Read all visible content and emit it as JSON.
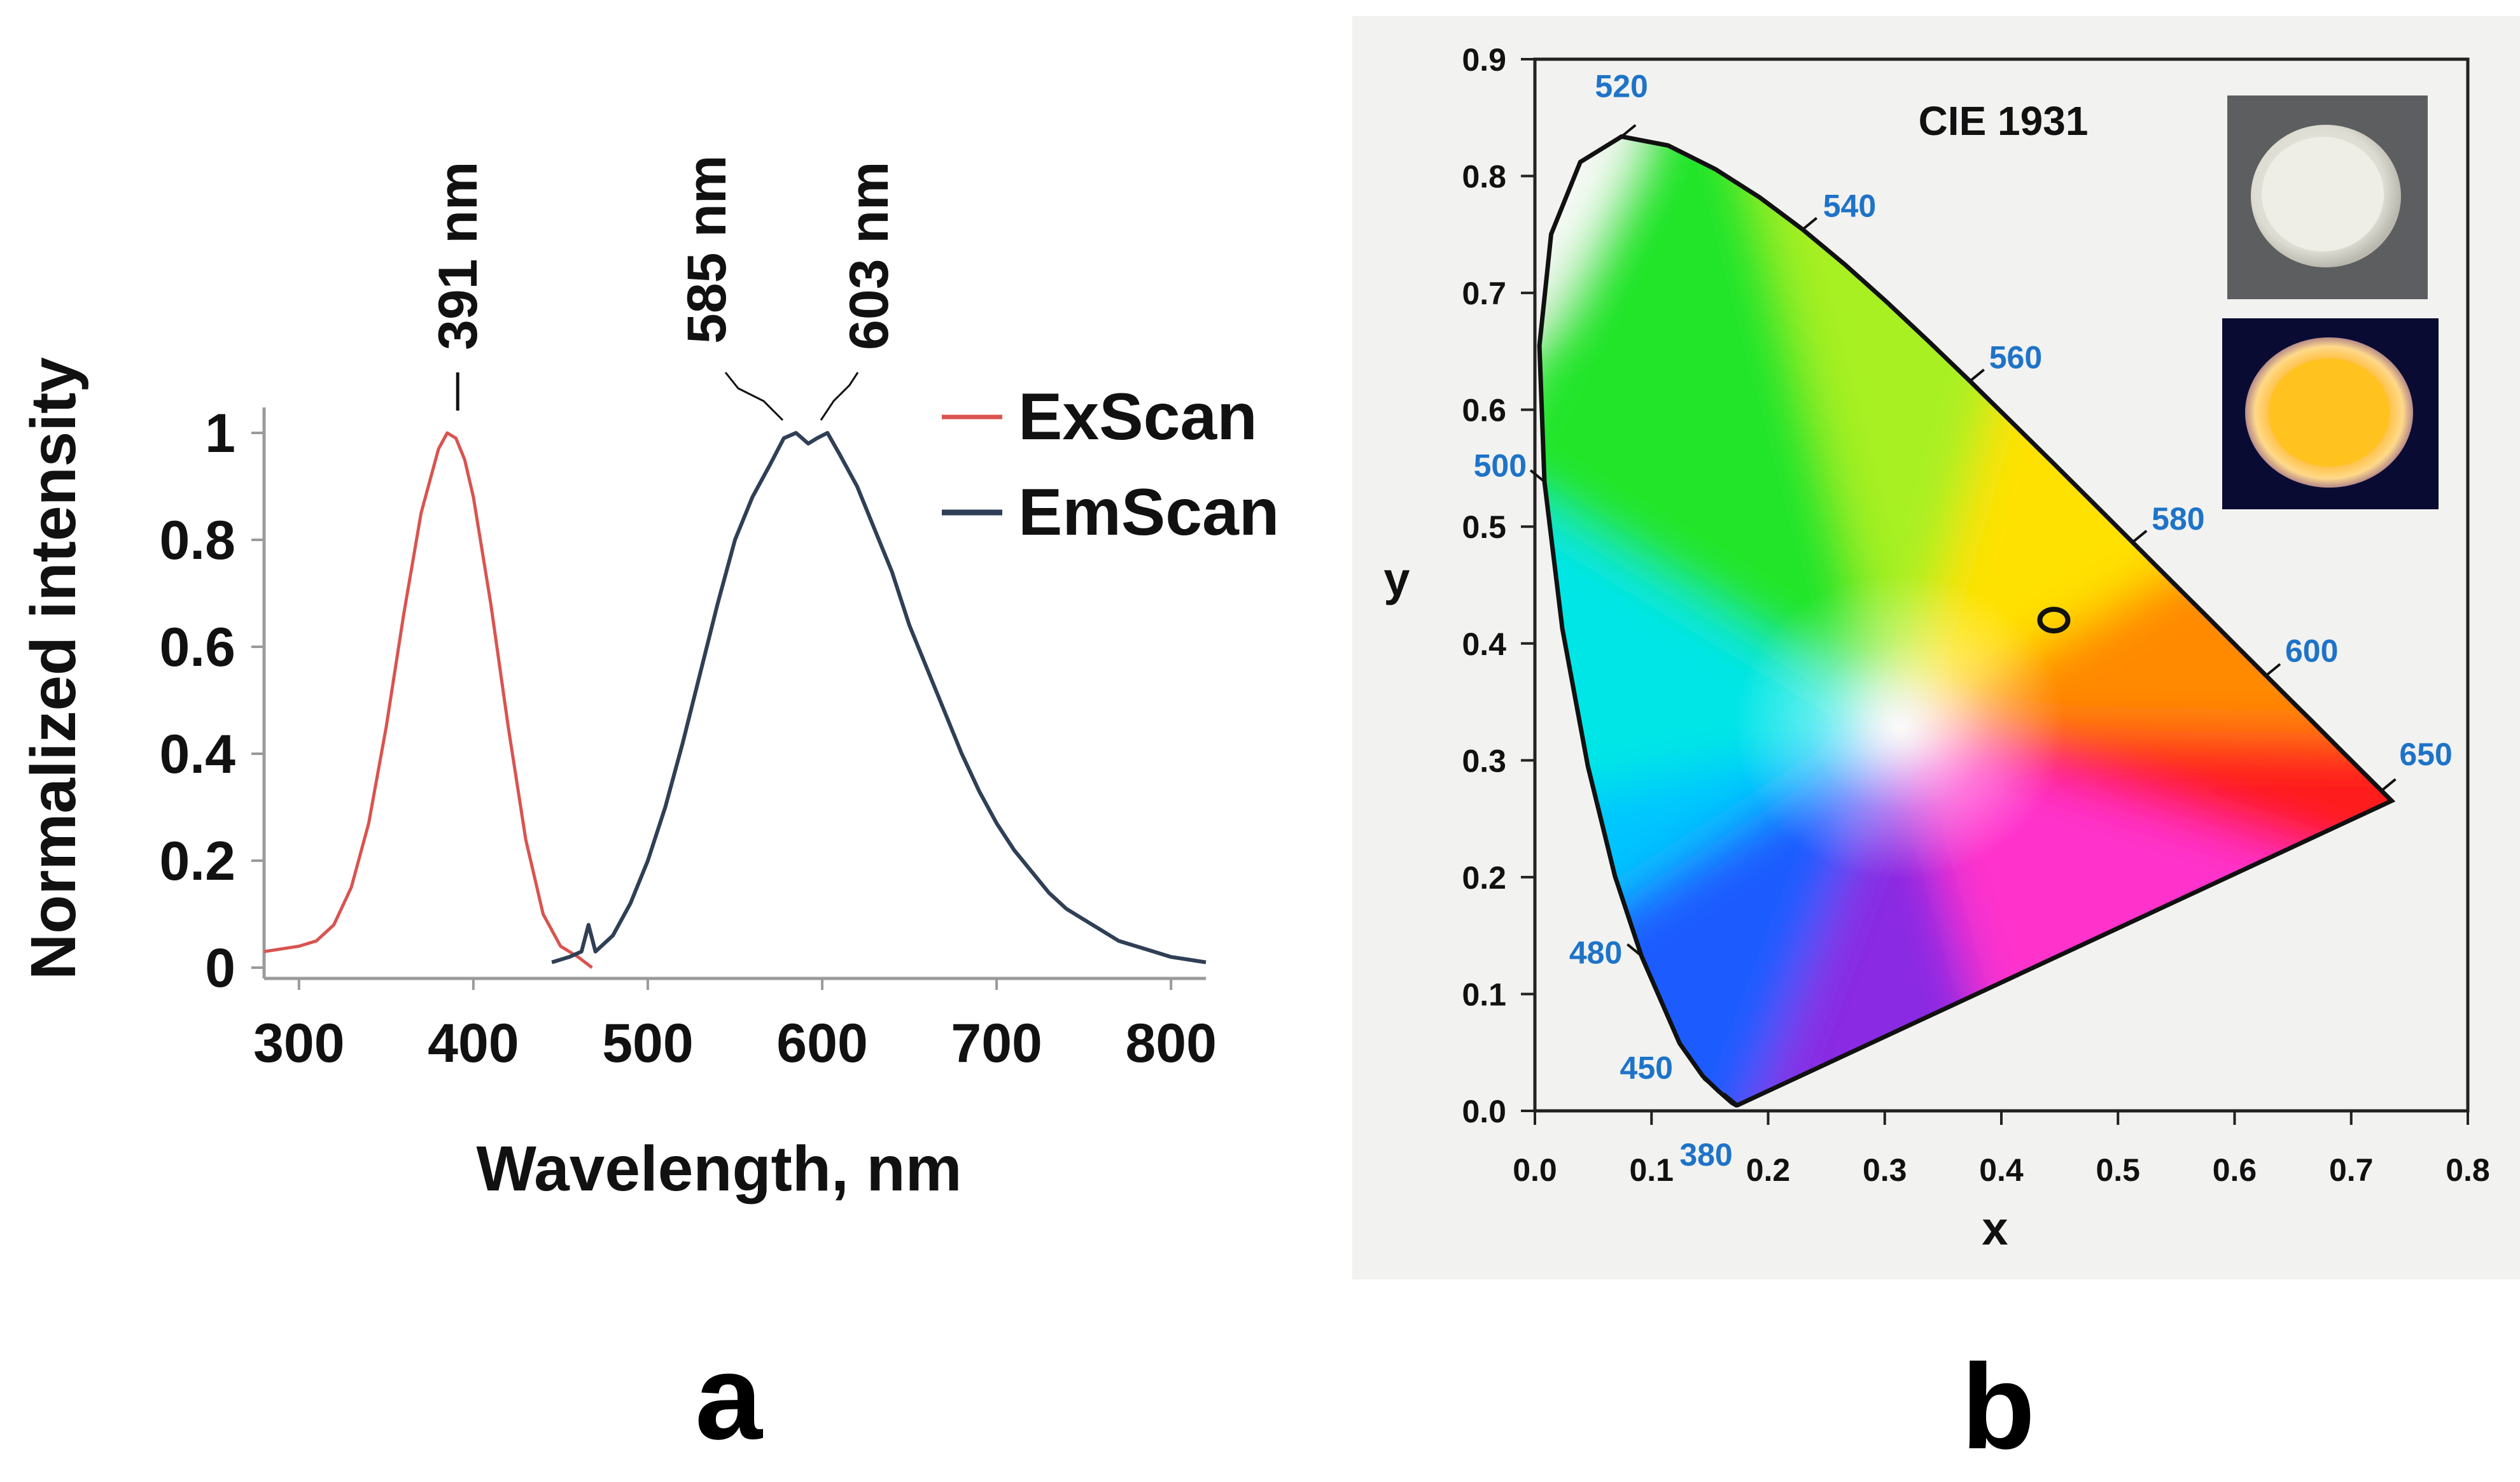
{
  "chart_data": [
    {
      "panel": "a",
      "type": "line",
      "xlabel": "Wavelength, nm",
      "ylabel": "Normalized intensity",
      "xlim": [
        280,
        820
      ],
      "ylim": [
        0,
        1
      ],
      "xticks": [
        300,
        400,
        500,
        600,
        700,
        800
      ],
      "yticks": [
        {
          "v": 0,
          "t": "0"
        },
        {
          "v": 0.2,
          "t": "0.2"
        },
        {
          "v": 0.4,
          "t": "0.4"
        },
        {
          "v": 0.6,
          "t": "0.6"
        },
        {
          "v": 0.8,
          "t": "0.8"
        },
        {
          "v": 1,
          "t": "1"
        }
      ],
      "legend_position": "top-right",
      "series": [
        {
          "name": "ExScan",
          "color": "#d9534f",
          "x": [
            280,
            300,
            310,
            320,
            330,
            340,
            350,
            360,
            370,
            380,
            385,
            390,
            395,
            400,
            410,
            420,
            430,
            440,
            450,
            460,
            468
          ],
          "y": [
            0.03,
            0.04,
            0.05,
            0.08,
            0.15,
            0.27,
            0.45,
            0.66,
            0.85,
            0.97,
            1.0,
            0.99,
            0.95,
            0.88,
            0.68,
            0.45,
            0.24,
            0.1,
            0.04,
            0.02,
            0.0
          ]
        },
        {
          "name": "EmScan",
          "color": "#2f3f55",
          "x": [
            445,
            455,
            462,
            466,
            470,
            480,
            490,
            500,
            510,
            520,
            530,
            540,
            550,
            560,
            570,
            578,
            585,
            592,
            597,
            603,
            610,
            620,
            630,
            640,
            650,
            660,
            670,
            680,
            690,
            700,
            710,
            720,
            730,
            740,
            750,
            760,
            770,
            780,
            790,
            800,
            810,
            820
          ],
          "y": [
            0.01,
            0.02,
            0.03,
            0.08,
            0.03,
            0.06,
            0.12,
            0.2,
            0.3,
            0.42,
            0.55,
            0.68,
            0.8,
            0.88,
            0.94,
            0.99,
            1.0,
            0.98,
            0.99,
            1.0,
            0.96,
            0.9,
            0.82,
            0.74,
            0.64,
            0.56,
            0.48,
            0.4,
            0.33,
            0.27,
            0.22,
            0.18,
            0.14,
            0.11,
            0.09,
            0.07,
            0.05,
            0.04,
            0.03,
            0.02,
            0.015,
            0.01
          ]
        }
      ],
      "peak_labels": [
        {
          "text": "391 nm",
          "x": 391,
          "y": 1.0
        },
        {
          "text": "585 nm",
          "x": 585,
          "y": 1.0
        },
        {
          "text": "603 nm",
          "x": 603,
          "y": 1.0
        }
      ]
    },
    {
      "panel": "b",
      "type": "scatter",
      "title": "CIE 1931",
      "xlabel": "x",
      "ylabel": "y",
      "xlim": [
        0,
        0.8
      ],
      "ylim": [
        0,
        0.9
      ],
      "xticks": [
        "0.0",
        "0.1",
        "0.2",
        "0.3",
        "0.4",
        "0.5",
        "0.6",
        "0.7",
        "0.8"
      ],
      "yticks": [
        "0.0",
        "0.1",
        "0.2",
        "0.3",
        "0.4",
        "0.5",
        "0.6",
        "0.7",
        "0.8",
        "0.9"
      ],
      "locus": [
        [
          0.1741,
          0.005
        ],
        [
          0.1738,
          0.0049
        ],
        [
          0.1726,
          0.0048
        ],
        [
          0.1689,
          0.0069
        ],
        [
          0.1566,
          0.0177
        ],
        [
          0.144,
          0.0297
        ],
        [
          0.1241,
          0.0578
        ],
        [
          0.0913,
          0.1327
        ],
        [
          0.0687,
          0.2007
        ],
        [
          0.0454,
          0.295
        ],
        [
          0.0235,
          0.4127
        ],
        [
          0.0082,
          0.5384
        ],
        [
          0.0039,
          0.6548
        ],
        [
          0.0139,
          0.7502
        ],
        [
          0.0389,
          0.812
        ],
        [
          0.0743,
          0.8338
        ],
        [
          0.1142,
          0.8262
        ],
        [
          0.1547,
          0.8059
        ],
        [
          0.1929,
          0.7816
        ],
        [
          0.2296,
          0.7543
        ],
        [
          0.2658,
          0.7243
        ],
        [
          0.3016,
          0.6923
        ],
        [
          0.3373,
          0.6589
        ],
        [
          0.3731,
          0.6245
        ],
        [
          0.4087,
          0.5896
        ],
        [
          0.4441,
          0.5547
        ],
        [
          0.4788,
          0.5202
        ],
        [
          0.5125,
          0.4866
        ],
        [
          0.5448,
          0.4544
        ],
        [
          0.5752,
          0.4242
        ],
        [
          0.6029,
          0.3965
        ],
        [
          0.627,
          0.3725
        ],
        [
          0.6482,
          0.3514
        ],
        [
          0.6658,
          0.334
        ],
        [
          0.6915,
          0.3083
        ],
        [
          0.7079,
          0.292
        ],
        [
          0.7347,
          0.2653
        ]
      ],
      "wavelength_labels": [
        {
          "text": "380",
          "x": 0.1741,
          "y": 0.005
        },
        {
          "text": "450",
          "x": 0.1566,
          "y": 0.0177
        },
        {
          "text": "480",
          "x": 0.0913,
          "y": 0.1327
        },
        {
          "text": "500",
          "x": 0.0082,
          "y": 0.5384
        },
        {
          "text": "520",
          "x": 0.0743,
          "y": 0.8338
        },
        {
          "text": "540",
          "x": 0.2296,
          "y": 0.7543
        },
        {
          "text": "560",
          "x": 0.3731,
          "y": 0.6245
        },
        {
          "text": "580",
          "x": 0.5125,
          "y": 0.4866
        },
        {
          "text": "600",
          "x": 0.627,
          "y": 0.3725
        },
        {
          "text": "650",
          "x": 0.726,
          "y": 0.274
        }
      ],
      "points": [
        {
          "x": 0.445,
          "y": 0.42
        }
      ],
      "colors": {
        "wl_label": "#1e73c8",
        "marker": "#111111"
      },
      "insets": [
        "white-disc-photo",
        "orange-glowing-disc-photo"
      ]
    }
  ],
  "panels": {
    "a": "a",
    "b": "b"
  }
}
